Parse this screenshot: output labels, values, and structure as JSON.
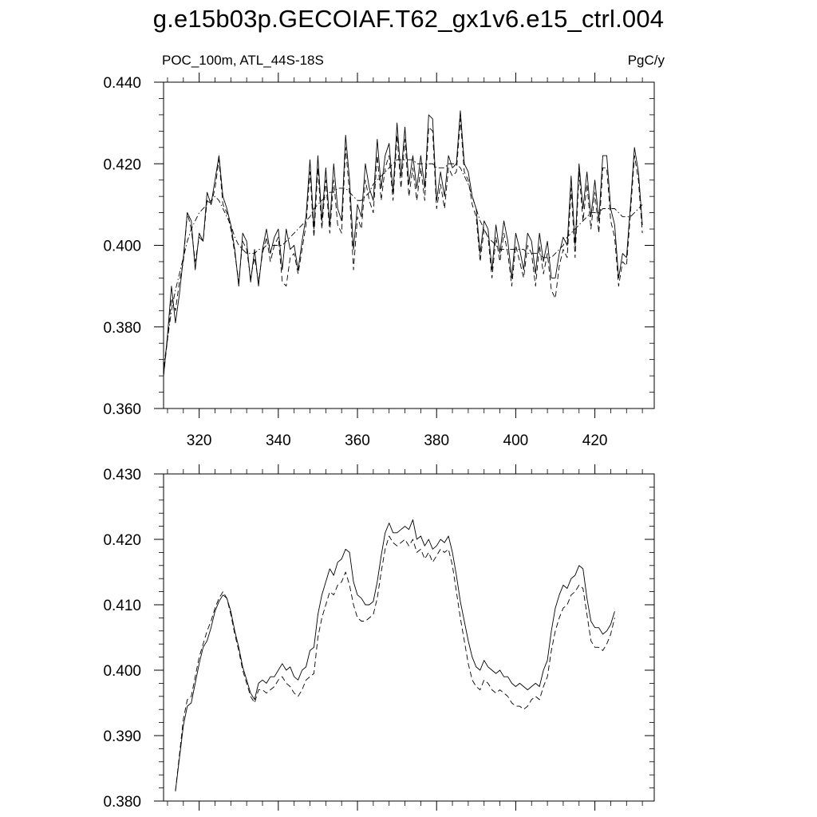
{
  "title": "g.e15b03p.GECOIAF.T62_gx1v6.e15_ctrl.004",
  "subtitle_left": "POC_100m, ATL_44S-18S",
  "subtitle_right": "PgC/y",
  "chart_data": [
    {
      "type": "line",
      "title": "",
      "xlim": [
        311,
        435
      ],
      "ylim": [
        0.36,
        0.44
      ],
      "x_ticks": [
        320,
        340,
        360,
        380,
        400,
        420
      ],
      "y_ticks": [
        0.36,
        0.38,
        0.4,
        0.42,
        0.44
      ],
      "y_tick_labels": [
        "0.360",
        "0.380",
        "0.400",
        "0.420",
        "0.440"
      ],
      "x_tick_labels": [
        "320",
        "340",
        "360",
        "380",
        "400",
        "420"
      ],
      "x_start": 311,
      "series": [
        {
          "style": "solid",
          "values": [
            0.368,
            0.378,
            0.39,
            0.381,
            0.388,
            0.397,
            0.408,
            0.406,
            0.394,
            0.403,
            0.401,
            0.413,
            0.41,
            0.416,
            0.422,
            0.412,
            0.409,
            0.405,
            0.399,
            0.39,
            0.403,
            0.401,
            0.391,
            0.399,
            0.39,
            0.399,
            0.404,
            0.398,
            0.402,
            0.404,
            0.394,
            0.404,
            0.399,
            0.4,
            0.394,
            0.401,
            0.407,
            0.421,
            0.404,
            0.422,
            0.406,
            0.419,
            0.405,
            0.42,
            0.409,
            0.406,
            0.427,
            0.416,
            0.399,
            0.41,
            0.407,
            0.42,
            0.414,
            0.411,
            0.426,
            0.414,
            0.422,
            0.425,
            0.413,
            0.43,
            0.417,
            0.429,
            0.415,
            0.422,
            0.414,
            0.422,
            0.414,
            0.432,
            0.431,
            0.411,
            0.418,
            0.412,
            0.422,
            0.419,
            0.42,
            0.433,
            0.42,
            0.418,
            0.412,
            0.409,
            0.398,
            0.406,
            0.404,
            0.394,
            0.405,
            0.398,
            0.406,
            0.401,
            0.392,
            0.403,
            0.399,
            0.394,
            0.403,
            0.401,
            0.393,
            0.403,
            0.396,
            0.401,
            0.392,
            0.392,
            0.398,
            0.402,
            0.4,
            0.417,
            0.4,
            0.42,
            0.409,
            0.418,
            0.407,
            0.416,
            0.406,
            0.422,
            0.422,
            0.409,
            0.405,
            0.392,
            0.398,
            0.397,
            0.41,
            0.424,
            0.418,
            0.405
          ]
        },
        {
          "style": "dashed",
          "values": [
            0.368,
            0.377,
            0.387,
            0.384,
            0.391,
            0.396,
            0.408,
            0.404,
            0.396,
            0.402,
            0.401,
            0.411,
            0.41,
            0.414,
            0.421,
            0.41,
            0.408,
            0.404,
            0.398,
            0.391,
            0.401,
            0.399,
            0.392,
            0.397,
            0.391,
            0.398,
            0.402,
            0.396,
            0.4,
            0.402,
            0.391,
            0.39,
            0.397,
            0.398,
            0.393,
            0.399,
            0.405,
            0.418,
            0.402,
            0.419,
            0.404,
            0.416,
            0.403,
            0.416,
            0.405,
            0.403,
            0.424,
            0.413,
            0.394,
            0.407,
            0.404,
            0.416,
            0.411,
            0.408,
            0.422,
            0.411,
            0.419,
            0.422,
            0.411,
            0.427,
            0.414,
            0.426,
            0.412,
            0.419,
            0.411,
            0.419,
            0.411,
            0.429,
            0.428,
            0.409,
            0.415,
            0.409,
            0.419,
            0.417,
            0.418,
            0.431,
            0.418,
            0.416,
            0.41,
            0.407,
            0.396,
            0.404,
            0.402,
            0.392,
            0.402,
            0.396,
            0.403,
            0.398,
            0.39,
            0.4,
            0.396,
            0.392,
            0.4,
            0.398,
            0.39,
            0.4,
            0.393,
            0.398,
            0.389,
            0.387,
            0.395,
            0.399,
            0.397,
            0.414,
            0.397,
            0.418,
            0.406,
            0.415,
            0.404,
            0.413,
            0.403,
            0.419,
            0.419,
            0.406,
            0.402,
            0.39,
            0.396,
            0.395,
            0.408,
            0.422,
            0.416,
            0.403
          ]
        },
        {
          "style": "dash-dot",
          "values": [
            0.37,
            0.377,
            0.384,
            0.389,
            0.393,
            0.397,
            0.401,
            0.404,
            0.406,
            0.408,
            0.409,
            0.41,
            0.411,
            0.412,
            0.411,
            0.409,
            0.407,
            0.405,
            0.402,
            0.4,
            0.399,
            0.398,
            0.398,
            0.398,
            0.399,
            0.399,
            0.4,
            0.4,
            0.4,
            0.4,
            0.4,
            0.401,
            0.402,
            0.403,
            0.404,
            0.405,
            0.406,
            0.407,
            0.409,
            0.41,
            0.411,
            0.412,
            0.413,
            0.413,
            0.414,
            0.414,
            0.414,
            0.413,
            0.412,
            0.411,
            0.411,
            0.412,
            0.413,
            0.415,
            0.416,
            0.417,
            0.418,
            0.419,
            0.42,
            0.421,
            0.421,
            0.421,
            0.421,
            0.421,
            0.42,
            0.42,
            0.42,
            0.42,
            0.42,
            0.419,
            0.419,
            0.419,
            0.42,
            0.42,
            0.42,
            0.419,
            0.417,
            0.415,
            0.412,
            0.409,
            0.406,
            0.404,
            0.402,
            0.401,
            0.4,
            0.399,
            0.399,
            0.399,
            0.399,
            0.399,
            0.399,
            0.399,
            0.398,
            0.398,
            0.398,
            0.398,
            0.397,
            0.397,
            0.397,
            0.398,
            0.399,
            0.4,
            0.402,
            0.403,
            0.404,
            0.405,
            0.406,
            0.407,
            0.408,
            0.408,
            0.408,
            0.409,
            0.409,
            0.409,
            0.409,
            0.408,
            0.407,
            0.407,
            0.407,
            0.408,
            0.409,
            0.41
          ]
        }
      ]
    },
    {
      "type": "line",
      "title": "",
      "xlim": [
        311,
        435
      ],
      "ylim": [
        0.38,
        0.43
      ],
      "x_ticks": [
        320,
        340,
        360,
        380,
        400,
        420
      ],
      "y_ticks": [
        0.38,
        0.39,
        0.4,
        0.41,
        0.42,
        0.43
      ],
      "y_tick_labels": [
        "0.380",
        "0.390",
        "0.400",
        "0.410",
        "0.420",
        "0.430"
      ],
      "x_tick_labels": [],
      "x_start": 314,
      "series": [
        {
          "style": "solid",
          "values": [
            0.3815,
            0.3865,
            0.3915,
            0.3945,
            0.395,
            0.398,
            0.401,
            0.4035,
            0.4045,
            0.4065,
            0.409,
            0.4105,
            0.4115,
            0.411,
            0.409,
            0.406,
            0.4035,
            0.4005,
            0.3985,
            0.3965,
            0.3955,
            0.398,
            0.3985,
            0.398,
            0.399,
            0.399,
            0.4,
            0.401,
            0.4,
            0.4005,
            0.399,
            0.3985,
            0.4,
            0.4005,
            0.403,
            0.4035,
            0.4085,
            0.4115,
            0.4135,
            0.4155,
            0.4145,
            0.4165,
            0.417,
            0.4185,
            0.418,
            0.4135,
            0.4115,
            0.411,
            0.41,
            0.41,
            0.4105,
            0.4135,
            0.4175,
            0.421,
            0.4225,
            0.421,
            0.421,
            0.4215,
            0.422,
            0.4215,
            0.423,
            0.42,
            0.4205,
            0.419,
            0.42,
            0.4185,
            0.419,
            0.42,
            0.4195,
            0.4205,
            0.418,
            0.4145,
            0.4105,
            0.4075,
            0.4045,
            0.402,
            0.4005,
            0.4,
            0.4015,
            0.4005,
            0.4,
            0.3995,
            0.4,
            0.399,
            0.399,
            0.398,
            0.3975,
            0.398,
            0.3975,
            0.397,
            0.3975,
            0.398,
            0.3975,
            0.4,
            0.4015,
            0.406,
            0.4095,
            0.4115,
            0.413,
            0.4125,
            0.414,
            0.4145,
            0.416,
            0.4155,
            0.411,
            0.4075,
            0.4065,
            0.4065,
            0.4055,
            0.406,
            0.407,
            0.409
          ]
        },
        {
          "style": "dashed",
          "values": [
            0.3815,
            0.387,
            0.3925,
            0.3955,
            0.396,
            0.399,
            0.402,
            0.404,
            0.406,
            0.4075,
            0.4095,
            0.411,
            0.412,
            0.411,
            0.4085,
            0.4055,
            0.403,
            0.4,
            0.398,
            0.396,
            0.395,
            0.397,
            0.397,
            0.3965,
            0.397,
            0.3975,
            0.3985,
            0.399,
            0.398,
            0.3975,
            0.3965,
            0.396,
            0.397,
            0.3985,
            0.399,
            0.3995,
            0.405,
            0.408,
            0.41,
            0.412,
            0.4115,
            0.413,
            0.4135,
            0.415,
            0.413,
            0.41,
            0.408,
            0.4075,
            0.4075,
            0.408,
            0.4085,
            0.411,
            0.415,
            0.4185,
            0.4205,
            0.4195,
            0.419,
            0.4195,
            0.42,
            0.419,
            0.42,
            0.418,
            0.4185,
            0.417,
            0.418,
            0.4165,
            0.4175,
            0.4185,
            0.418,
            0.4185,
            0.416,
            0.412,
            0.408,
            0.4045,
            0.401,
            0.3985,
            0.3975,
            0.397,
            0.3985,
            0.398,
            0.397,
            0.3965,
            0.397,
            0.3965,
            0.396,
            0.395,
            0.3945,
            0.3945,
            0.394,
            0.3945,
            0.3955,
            0.396,
            0.3955,
            0.3975,
            0.399,
            0.403,
            0.406,
            0.408,
            0.4095,
            0.41,
            0.4115,
            0.412,
            0.413,
            0.4125,
            0.4085,
            0.4045,
            0.4035,
            0.4035,
            0.403,
            0.404,
            0.4055,
            0.408
          ]
        }
      ]
    }
  ]
}
